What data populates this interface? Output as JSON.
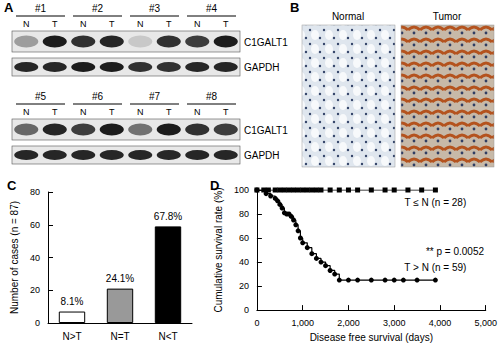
{
  "panel_a": {
    "label": "A",
    "groups": [
      "#1",
      "#2",
      "#3",
      "#4",
      "#5",
      "#6",
      "#7",
      "#8"
    ],
    "lanes": [
      "N",
      "T"
    ],
    "rows": [
      "C1GALT1",
      "GAPDH"
    ]
  },
  "panel_b": {
    "label": "B",
    "images": [
      "Normal",
      "Tumor"
    ]
  },
  "chart_data": [
    {
      "type": "bar",
      "title": "C",
      "categories": [
        "N>T",
        "N=T",
        "N<T"
      ],
      "values": [
        7,
        21,
        59
      ],
      "colors": [
        "#ffffff",
        "#999999",
        "#000000"
      ],
      "annotations": [
        "8.1%",
        "24.1%",
        "67.8%"
      ],
      "ylabel": "Number of cases (n = 87)",
      "ylim": [
        0,
        80
      ],
      "yticks": [
        0,
        20,
        40,
        60,
        80
      ],
      "grid": false
    },
    {
      "type": "line",
      "title": "D",
      "xlabel": "Disease free survival (days)",
      "ylabel": "Cumulative survival rate (%)",
      "xlim": [
        0,
        5000
      ],
      "xticks": [
        0,
        1000,
        2000,
        3000,
        4000,
        5000
      ],
      "ylim": [
        0,
        100
      ],
      "yticks": [
        0,
        20,
        40,
        60,
        80,
        100
      ],
      "grid": false,
      "line_style": "step",
      "annotations": [
        "** p = 0.0052"
      ],
      "series": [
        {
          "name": "T ≤ N (n = 28)",
          "color": "#000000",
          "marker": "square",
          "x": [
            0,
            150,
            250,
            400,
            500,
            600,
            700,
            800,
            900,
            1000,
            1100,
            1200,
            1300,
            1400,
            1600,
            1800,
            2000,
            2200,
            2500,
            2800,
            3000,
            3300,
            3600,
            3900
          ],
          "values": [
            100,
            100,
            100,
            100,
            100,
            100,
            100,
            100,
            100,
            100,
            100,
            100,
            100,
            100,
            100,
            100,
            100,
            100,
            100,
            100,
            100,
            100,
            100,
            100
          ]
        },
        {
          "name": "T > N (n = 59)",
          "color": "#000000",
          "marker": "circle",
          "x": [
            0,
            200,
            300,
            400,
            450,
            500,
            550,
            600,
            650,
            700,
            750,
            800,
            850,
            900,
            950,
            1000,
            1100,
            1200,
            1300,
            1400,
            1500,
            1600,
            1700,
            1800,
            2000,
            2200,
            2500,
            2800,
            3000,
            3200,
            3500,
            3900
          ],
          "values": [
            100,
            97,
            95,
            93,
            91,
            88,
            85,
            81,
            80,
            80,
            78,
            75,
            71,
            66,
            60,
            56,
            52,
            47,
            43,
            40,
            37,
            33,
            30,
            25,
            25,
            25,
            25,
            25,
            25,
            25,
            25,
            25
          ]
        }
      ]
    }
  ]
}
